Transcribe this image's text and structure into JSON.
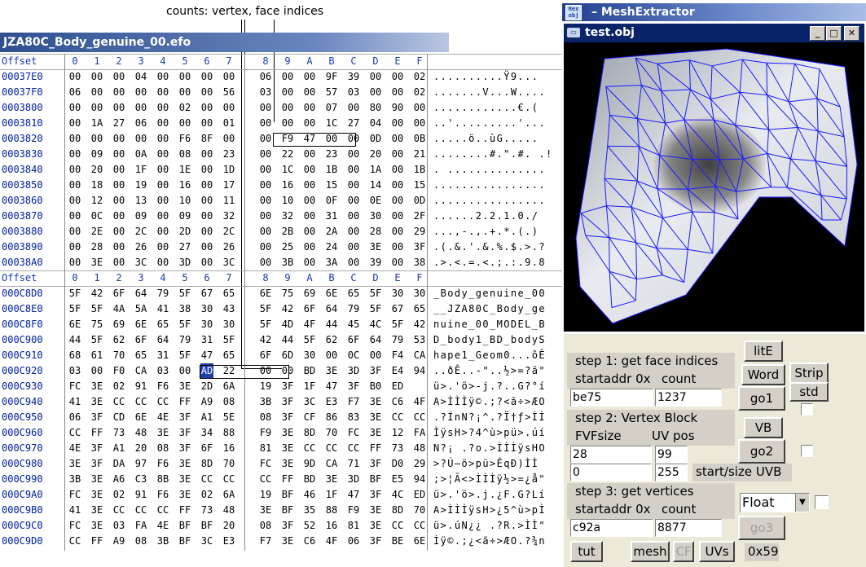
{
  "annotation": "counts: vertex,  face indices",
  "hex_editor": {
    "filename": "JZA80C_Body_genuine_00.efo",
    "offset_label": "Offset",
    "col_headers": [
      "0",
      "1",
      "2",
      "3",
      "4",
      "5",
      "6",
      "7",
      "8",
      "9",
      "A",
      "B",
      "C",
      "D",
      "E",
      "F"
    ],
    "block1": [
      {
        "off": "00037E0",
        "b": [
          "00",
          "00",
          "00",
          "04",
          "00",
          "00",
          "00",
          "00",
          "06",
          "00",
          "00",
          "9F",
          "39",
          "00",
          "00",
          "02"
        ],
        "asc": "..........Ÿ9..."
      },
      {
        "off": "00037F0",
        "b": [
          "06",
          "00",
          "00",
          "00",
          "00",
          "00",
          "00",
          "56",
          "03",
          "00",
          "00",
          "57",
          "03",
          "00",
          "00",
          "02"
        ],
        "asc": ".......V...W...."
      },
      {
        "off": "0003800",
        "b": [
          "00",
          "00",
          "00",
          "00",
          "00",
          "02",
          "00",
          "00",
          "00",
          "00",
          "00",
          "07",
          "00",
          "80",
          "90",
          "00"
        ],
        "asc": "............€.("
      },
      {
        "off": "0003810",
        "b": [
          "00",
          "1A",
          "27",
          "06",
          "00",
          "00",
          "00",
          "01",
          "00",
          "00",
          "00",
          "1C",
          "27",
          "04",
          "00",
          "00"
        ],
        "asc": "..'.........'..."
      },
      {
        "off": "0003820",
        "b": [
          "00",
          "00",
          "00",
          "00",
          "00",
          "F6",
          "8F",
          "00",
          "00",
          "F9",
          "47",
          "00",
          "00",
          "0D",
          "00",
          "0B"
        ],
        "asc": ".....ö..ùG....."
      },
      {
        "off": "0003830",
        "b": [
          "00",
          "09",
          "00",
          "0A",
          "00",
          "08",
          "00",
          "23",
          "00",
          "22",
          "00",
          "23",
          "00",
          "20",
          "00",
          "21"
        ],
        "asc": "........#.\".#. .!"
      },
      {
        "off": "0003840",
        "b": [
          "00",
          "20",
          "00",
          "1F",
          "00",
          "1E",
          "00",
          "1D",
          "00",
          "1C",
          "00",
          "1B",
          "00",
          "1A",
          "00",
          "1B"
        ],
        "asc": ". .............."
      },
      {
        "off": "0003850",
        "b": [
          "00",
          "18",
          "00",
          "19",
          "00",
          "16",
          "00",
          "17",
          "00",
          "16",
          "00",
          "15",
          "00",
          "14",
          "00",
          "15"
        ],
        "asc": "................"
      },
      {
        "off": "0003860",
        "b": [
          "00",
          "12",
          "00",
          "13",
          "00",
          "10",
          "00",
          "11",
          "00",
          "10",
          "00",
          "0F",
          "00",
          "0E",
          "00",
          "0D"
        ],
        "asc": "................"
      },
      {
        "off": "0003870",
        "b": [
          "00",
          "0C",
          "00",
          "09",
          "00",
          "09",
          "00",
          "32",
          "00",
          "32",
          "00",
          "31",
          "00",
          "30",
          "00",
          "2F"
        ],
        "asc": "......2.2.1.0./"
      },
      {
        "off": "0003880",
        "b": [
          "00",
          "2E",
          "00",
          "2C",
          "00",
          "2D",
          "00",
          "2C",
          "00",
          "2B",
          "00",
          "2A",
          "00",
          "28",
          "00",
          "29"
        ],
        "asc": "...,-.,.+.*.(.)"
      },
      {
        "off": "0003890",
        "b": [
          "00",
          "28",
          "00",
          "26",
          "00",
          "27",
          "00",
          "26",
          "00",
          "25",
          "00",
          "24",
          "00",
          "3E",
          "00",
          "3F"
        ],
        "asc": ".(.&.'.&.%.$.>.?"
      },
      {
        "off": "00038A0",
        "b": [
          "00",
          "3E",
          "00",
          "3C",
          "00",
          "3D",
          "00",
          "3C",
          "00",
          "3B",
          "00",
          "3A",
          "00",
          "39",
          "00",
          "38"
        ],
        "asc": ".>.<.=.<.;.:.9.8"
      }
    ],
    "block2": [
      {
        "off": "000C8D0",
        "b": [
          "5F",
          "42",
          "6F",
          "64",
          "79",
          "5F",
          "67",
          "65",
          "6E",
          "75",
          "69",
          "6E",
          "65",
          "5F",
          "30",
          "30"
        ],
        "asc": "_Body_genuine_00"
      },
      {
        "off": "000C8E0",
        "b": [
          "5F",
          "5F",
          "4A",
          "5A",
          "41",
          "38",
          "30",
          "43",
          "5F",
          "42",
          "6F",
          "64",
          "79",
          "5F",
          "67",
          "65"
        ],
        "asc": "__JZA80C_Body_ge"
      },
      {
        "off": "000C8F0",
        "b": [
          "6E",
          "75",
          "69",
          "6E",
          "65",
          "5F",
          "30",
          "30",
          "5F",
          "4D",
          "4F",
          "44",
          "45",
          "4C",
          "5F",
          "42"
        ],
        "asc": "nuine_00_MODEL_B"
      },
      {
        "off": "000C900",
        "b": [
          "44",
          "5F",
          "62",
          "6F",
          "64",
          "79",
          "31",
          "5F",
          "42",
          "44",
          "5F",
          "62",
          "6F",
          "64",
          "79",
          "53"
        ],
        "asc": "D_body1_BD_bodyS"
      },
      {
        "off": "000C910",
        "b": [
          "68",
          "61",
          "70",
          "65",
          "31",
          "5F",
          "47",
          "65",
          "6F",
          "6D",
          "30",
          "00",
          "0C",
          "00",
          "F4",
          "CA"
        ],
        "asc": "hape1_Geom0...ôÊ"
      },
      {
        "off": "000C920",
        "b": [
          "03",
          "00",
          "F0",
          "CA",
          "03",
          "00",
          "AD",
          "22",
          "00",
          "00",
          "BD",
          "3E",
          "3D",
          "3F",
          "E4",
          "94"
        ],
        "asc": "..ðÊ..-\"..½>=?ä\""
      },
      {
        "off": "000C930",
        "b": [
          "FC",
          "3E",
          "02",
          "91",
          "F6",
          "3E",
          "2D",
          "6A",
          "19",
          "3F",
          "1F",
          "47",
          "3F",
          "B0",
          "ED"
        ],
        "asc": "ü>.'ö>-j.?..G?°í"
      },
      {
        "off": "000C940",
        "b": [
          "41",
          "3E",
          "CC",
          "CC",
          "CC",
          "FF",
          "A9",
          "08",
          "3B",
          "3F",
          "3C",
          "E3",
          "F7",
          "3E",
          "C6",
          "4F"
        ],
        "asc": "A>ÌÌÌÿ©.;?<ã÷>ÆO"
      },
      {
        "off": "000C950",
        "b": [
          "06",
          "3F",
          "CD",
          "6E",
          "4E",
          "3F",
          "A1",
          "5E",
          "08",
          "3F",
          "CF",
          "86",
          "83",
          "3E",
          "CC",
          "CC"
        ],
        "asc": ".?ÍnN?¡^.?Ï†ƒ>ÌÌ"
      },
      {
        "off": "000C960",
        "b": [
          "CC",
          "FF",
          "73",
          "48",
          "3E",
          "3F",
          "34",
          "88",
          "F9",
          "3E",
          "8D",
          "70",
          "FC",
          "3E",
          "12",
          "FA"
        ],
        "asc": "ÌÿsH>?4^ù>pü>.úí"
      },
      {
        "off": "000C970",
        "b": [
          "4E",
          "3F",
          "A1",
          "20",
          "08",
          "3F",
          "6F",
          "16",
          "81",
          "3E",
          "CC",
          "CC",
          "CC",
          "FF",
          "73",
          "48"
        ],
        "asc": "N?¡ .?o.>ÌÌÌÿsHO"
      },
      {
        "off": "000C980",
        "b": [
          "3E",
          "3F",
          "DA",
          "97",
          "F6",
          "3E",
          "8D",
          "70",
          "FC",
          "3E",
          "9D",
          "CA",
          "71",
          "3F",
          "D0",
          "29"
        ],
        "asc": ">?Ú—ö>pü>ÊqÐ)ÌÌ"
      },
      {
        "off": "000C990",
        "b": [
          "3B",
          "3E",
          "A6",
          "C3",
          "8B",
          "3E",
          "CC",
          "CC",
          "CC",
          "FF",
          "BD",
          "3E",
          "3D",
          "BF",
          "E5",
          "94"
        ],
        "asc": ";>¦Ã<>ÌÌÌÿ½>=¿å\""
      },
      {
        "off": "000C9A0",
        "b": [
          "FC",
          "3E",
          "02",
          "91",
          "F6",
          "3E",
          "02",
          "6A",
          "19",
          "BF",
          "46",
          "1F",
          "47",
          "3F",
          "4C",
          "ED"
        ],
        "asc": "ü>.'ö>.j.¿F.G?Lí"
      },
      {
        "off": "000C9B0",
        "b": [
          "41",
          "3E",
          "CC",
          "CC",
          "CC",
          "FF",
          "73",
          "48",
          "3E",
          "BF",
          "35",
          "88",
          "F9",
          "3E",
          "8D",
          "70"
        ],
        "asc": "A>ÌÌÌÿsH>¿5^ù>pÌ"
      },
      {
        "off": "000C9C0",
        "b": [
          "FC",
          "3E",
          "03",
          "FA",
          "4E",
          "BF",
          "BF",
          "20",
          "08",
          "3F",
          "52",
          "16",
          "81",
          "3E",
          "CC",
          "CC"
        ],
        "asc": "ü>.úN¿¿ .?R.>ÌÌ\""
      },
      {
        "off": "000C9D0",
        "b": [
          "CC",
          "FF",
          "A9",
          "08",
          "3B",
          "BF",
          "3C",
          "E3",
          "F7",
          "3E",
          "C6",
          "4F",
          "06",
          "3F",
          "BE",
          "6E"
        ],
        "asc": "Ìÿ©.;¿<ã÷>ÆO.?¾n"
      }
    ]
  },
  "mesh_extractor": {
    "app_title": "MeshExtractor",
    "app_icon": "hex-obj-icon",
    "app_icon_text_top": "Hex",
    "app_icon_text_bottom": "obj",
    "subwindow_title": "test.obj",
    "step1": {
      "title": "step 1: get face indices",
      "addr_label": "startaddr 0x",
      "count_label": "count",
      "addr": "be75",
      "count": "1237"
    },
    "step2": {
      "title": "step 2: Vertex Block",
      "fvf_label": "FVFsize",
      "uv_label": "UV pos",
      "fvf": "28",
      "uv": "99",
      "start": "0",
      "size": "255",
      "start_size_label": "start/size UVB"
    },
    "step3": {
      "title": "step 3: get vertices",
      "addr_label": "startaddr 0x",
      "count_label": "count",
      "addr": "c92a",
      "count": "8877",
      "format": "Float"
    },
    "buttons": {
      "lite": "litE",
      "word": "Word",
      "go1": "go1",
      "strip": "Strip",
      "std": "std",
      "vb": "VB",
      "go2": "go2",
      "go3": "go3",
      "tut": "tut",
      "mesh": "mesh",
      "cf": "CF",
      "uvs": "UVs",
      "size_readout": "0x59"
    }
  }
}
